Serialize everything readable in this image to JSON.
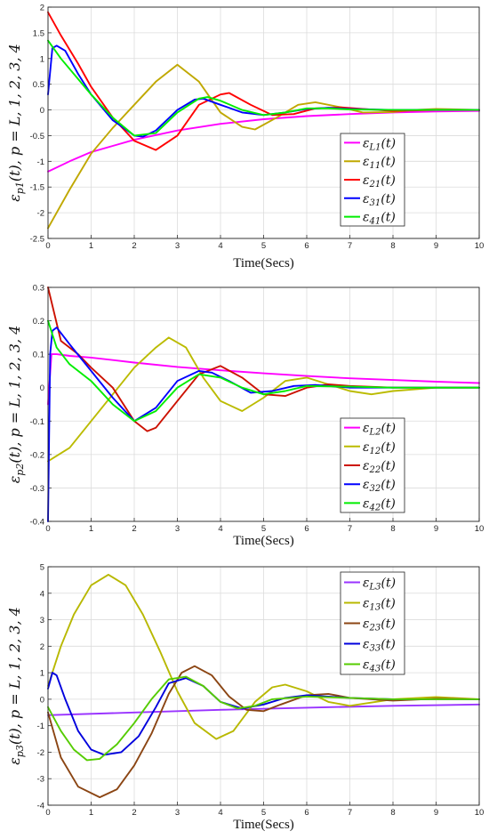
{
  "chart_data": [
    {
      "type": "line",
      "ylabel": "εp1(t), p = L, 1, 2, 3, 4",
      "xlabel": "Time(Secs)",
      "xlim": [
        0,
        10
      ],
      "ylim": [
        -2.5,
        2
      ],
      "xticks": [
        "0",
        "1",
        "2",
        "3",
        "4",
        "5",
        "6",
        "7",
        "8",
        "9",
        "10"
      ],
      "yticks": [
        "-2.5",
        "-2",
        "-1.5",
        "-1",
        "-0.5",
        "0",
        "0.5",
        "1",
        "1.5",
        "2"
      ],
      "grid": true,
      "legend_position": "right-center",
      "series": [
        {
          "name": "εL1(t)",
          "color": "#ff00ff",
          "x": [
            0,
            0.5,
            1,
            1.5,
            2,
            3,
            4,
            5,
            6,
            7,
            8,
            9,
            10
          ],
          "y": [
            -1.2,
            -1.0,
            -0.82,
            -0.7,
            -0.58,
            -0.4,
            -0.27,
            -0.18,
            -0.12,
            -0.08,
            -0.05,
            -0.03,
            -0.02
          ]
        },
        {
          "name": "ε11(t)",
          "color": "#c0a800",
          "x": [
            0,
            0.5,
            1,
            1.5,
            2,
            2.5,
            3,
            3.5,
            4,
            4.5,
            4.8,
            5.3,
            5.8,
            6.2,
            6.8,
            7.3,
            8,
            8.5,
            9,
            10
          ],
          "y": [
            -2.3,
            -1.55,
            -0.85,
            -0.35,
            0.1,
            0.55,
            0.88,
            0.55,
            -0.05,
            -0.33,
            -0.38,
            -0.15,
            0.1,
            0.15,
            0.05,
            -0.05,
            -0.04,
            0.0,
            0.02,
            0.0
          ]
        },
        {
          "name": "ε21(t)",
          "color": "#ff0000",
          "x": [
            0,
            0.3,
            0.7,
            1,
            1.5,
            2,
            2.5,
            3,
            3.5,
            4,
            4.2,
            4.7,
            5.2,
            5.7,
            6.2,
            6.8,
            7.3,
            8,
            9,
            10
          ],
          "y": [
            1.9,
            1.45,
            0.9,
            0.45,
            -0.15,
            -0.6,
            -0.78,
            -0.5,
            0.1,
            0.3,
            0.33,
            0.1,
            -0.1,
            -0.08,
            0.03,
            0.05,
            0.02,
            -0.02,
            0.0,
            0.0
          ]
        },
        {
          "name": "ε31(t)",
          "color": "#0000ff",
          "x": [
            0,
            0.1,
            0.2,
            0.4,
            0.7,
            1,
            1.5,
            2,
            2.2,
            2.5,
            3,
            3.4,
            3.6,
            4,
            4.5,
            5,
            5.5,
            6,
            6.5,
            7,
            8,
            9,
            10
          ],
          "y": [
            0.3,
            1.2,
            1.25,
            1.15,
            0.7,
            0.3,
            -0.2,
            -0.5,
            -0.52,
            -0.4,
            0.0,
            0.2,
            0.22,
            0.1,
            -0.05,
            -0.1,
            -0.05,
            0.02,
            0.04,
            0.02,
            0.0,
            0.0,
            0.0
          ]
        },
        {
          "name": "ε41(t)",
          "color": "#00ee00",
          "x": [
            0,
            0.3,
            0.7,
            1,
            1.5,
            2,
            2.5,
            3,
            3.5,
            3.7,
            4,
            4.5,
            5,
            5.5,
            6,
            6.5,
            7,
            8,
            9,
            10
          ],
          "y": [
            1.35,
            1.0,
            0.6,
            0.3,
            -0.15,
            -0.5,
            -0.45,
            -0.05,
            0.22,
            0.25,
            0.18,
            0.0,
            -0.1,
            -0.05,
            0.03,
            0.03,
            0.01,
            0.0,
            0.0,
            0.0
          ]
        }
      ]
    },
    {
      "type": "line",
      "ylabel": "εp2(t), p = L, 1, 2, 3, 4",
      "xlabel": "Time(Secs)",
      "xlim": [
        0,
        10
      ],
      "ylim": [
        -0.4,
        0.3
      ],
      "xticks": [
        "0",
        "1",
        "2",
        "3",
        "4",
        "5",
        "6",
        "7",
        "8",
        "9",
        "10"
      ],
      "yticks": [
        "-0.4",
        "-0.3",
        "-0.2",
        "-0.1",
        "0",
        "0.1",
        "0.2",
        "0.3"
      ],
      "grid": true,
      "legend_position": "bottom-right",
      "series": [
        {
          "name": "εL2(t)",
          "color": "#ff00ff",
          "x": [
            0,
            0.08,
            0.2,
            0.5,
            1,
            2,
            3,
            4,
            5,
            6,
            7,
            8,
            9,
            10
          ],
          "y": [
            -0.05,
            0.1,
            0.1,
            0.095,
            0.09,
            0.075,
            0.062,
            0.052,
            0.043,
            0.035,
            0.028,
            0.023,
            0.018,
            0.014
          ]
        },
        {
          "name": "ε12(t)",
          "color": "#bbbb00",
          "x": [
            0,
            0.5,
            1,
            1.5,
            2,
            2.5,
            2.8,
            3.2,
            3.6,
            4,
            4.5,
            5,
            5.5,
            6,
            6.5,
            7,
            7.5,
            8,
            9,
            10
          ],
          "y": [
            -0.22,
            -0.18,
            -0.1,
            -0.02,
            0.06,
            0.12,
            0.15,
            0.12,
            0.03,
            -0.04,
            -0.07,
            -0.03,
            0.02,
            0.03,
            0.01,
            -0.01,
            -0.02,
            -0.01,
            0.0,
            0.0
          ]
        },
        {
          "name": "ε22(t)",
          "color": "#cc1100",
          "x": [
            0,
            0.3,
            0.7,
            1,
            1.5,
            2,
            2.3,
            2.5,
            3,
            3.5,
            4,
            4.5,
            5,
            5.5,
            6,
            6.5,
            7,
            8,
            9,
            10
          ],
          "y": [
            0.3,
            0.14,
            0.1,
            0.06,
            0.0,
            -0.1,
            -0.13,
            -0.12,
            -0.04,
            0.04,
            0.065,
            0.03,
            -0.02,
            -0.025,
            0.0,
            0.01,
            0.005,
            0.0,
            0.0,
            0.0
          ]
        },
        {
          "name": "ε32(t)",
          "color": "#0000ff",
          "x": [
            0,
            0.05,
            0.1,
            0.2,
            0.5,
            1,
            1.5,
            2,
            2.5,
            3,
            3.5,
            3.8,
            4.2,
            4.7,
            5.2,
            5.7,
            6.2,
            7,
            8,
            9,
            10
          ],
          "y": [
            -0.4,
            0.1,
            0.17,
            0.18,
            0.13,
            0.05,
            -0.03,
            -0.1,
            -0.06,
            0.02,
            0.05,
            0.045,
            0.02,
            -0.015,
            -0.01,
            0.005,
            0.008,
            0.0,
            0.0,
            0.0,
            0.0
          ]
        },
        {
          "name": "ε42(t)",
          "color": "#00ee00",
          "x": [
            0,
            0.2,
            0.5,
            1,
            1.5,
            2,
            2.5,
            3,
            3.5,
            4,
            4.5,
            5,
            5.5,
            6,
            7,
            8,
            9,
            10
          ],
          "y": [
            0.2,
            0.12,
            0.07,
            0.02,
            -0.05,
            -0.1,
            -0.07,
            0.0,
            0.04,
            0.03,
            0.0,
            -0.02,
            -0.01,
            0.005,
            0.003,
            0.0,
            0.0,
            0.0
          ]
        }
      ]
    },
    {
      "type": "line",
      "ylabel": "εp3(t), p = L, 1, 2, 3, 4",
      "xlabel": "Time(Secs)",
      "xlim": [
        0,
        10
      ],
      "ylim": [
        -4,
        5
      ],
      "xticks": [
        "0",
        "1",
        "2",
        "3",
        "4",
        "5",
        "6",
        "7",
        "8",
        "9",
        "10"
      ],
      "yticks": [
        "-4",
        "-3",
        "-2",
        "-1",
        "0",
        "1",
        "2",
        "3",
        "4",
        "5"
      ],
      "grid": true,
      "legend_position": "top-right",
      "series": [
        {
          "name": "εL3(t)",
          "color": "#9933ff",
          "x": [
            0,
            2,
            4,
            6,
            8,
            10
          ],
          "y": [
            -0.6,
            -0.5,
            -0.4,
            -0.32,
            -0.25,
            -0.2
          ]
        },
        {
          "name": "ε13(t)",
          "color": "#b8b800",
          "x": [
            0,
            0.3,
            0.6,
            1,
            1.4,
            1.8,
            2.2,
            2.6,
            3,
            3.4,
            3.9,
            4.3,
            4.8,
            5.2,
            5.5,
            6,
            6.5,
            7,
            8,
            9,
            10
          ],
          "y": [
            0.5,
            2.0,
            3.2,
            4.3,
            4.7,
            4.3,
            3.2,
            1.8,
            0.3,
            -0.9,
            -1.5,
            -1.2,
            -0.1,
            0.45,
            0.55,
            0.3,
            -0.1,
            -0.25,
            0.0,
            0.08,
            0.0
          ]
        },
        {
          "name": "ε23(t)",
          "color": "#8b4513",
          "x": [
            0,
            0.3,
            0.7,
            1.2,
            1.6,
            2,
            2.4,
            2.8,
            3.1,
            3.4,
            3.8,
            4.2,
            4.6,
            5,
            5.4,
            6,
            6.5,
            7,
            8,
            9,
            10
          ],
          "y": [
            -0.5,
            -2.2,
            -3.3,
            -3.7,
            -3.4,
            -2.5,
            -1.3,
            0.2,
            1.0,
            1.25,
            0.9,
            0.1,
            -0.4,
            -0.45,
            -0.2,
            0.15,
            0.2,
            0.05,
            -0.05,
            0.02,
            0.0
          ]
        },
        {
          "name": "ε33(t)",
          "color": "#0000dd",
          "x": [
            0,
            0.1,
            0.2,
            0.4,
            0.7,
            1,
            1.3,
            1.7,
            2.1,
            2.5,
            2.8,
            3.2,
            3.6,
            4,
            4.5,
            5,
            5.5,
            6,
            7,
            8,
            9,
            10
          ],
          "y": [
            0.4,
            1.0,
            0.9,
            0.0,
            -1.2,
            -1.9,
            -2.1,
            -2.0,
            -1.4,
            -0.3,
            0.6,
            0.8,
            0.5,
            -0.1,
            -0.35,
            -0.2,
            0.05,
            0.15,
            0.05,
            0.0,
            0.0,
            0.0
          ]
        },
        {
          "name": "ε43(t)",
          "color": "#55cc00",
          "x": [
            0,
            0.3,
            0.6,
            0.9,
            1.2,
            1.6,
            2,
            2.4,
            2.8,
            3.2,
            3.6,
            4,
            4.4,
            4.8,
            5.2,
            6,
            7,
            8,
            9,
            10
          ],
          "y": [
            -0.3,
            -1.2,
            -1.9,
            -2.3,
            -2.25,
            -1.7,
            -0.9,
            0.0,
            0.75,
            0.85,
            0.5,
            -0.1,
            -0.35,
            -0.25,
            0.0,
            0.1,
            0.05,
            0.0,
            0.0,
            0.0
          ]
        }
      ]
    }
  ]
}
